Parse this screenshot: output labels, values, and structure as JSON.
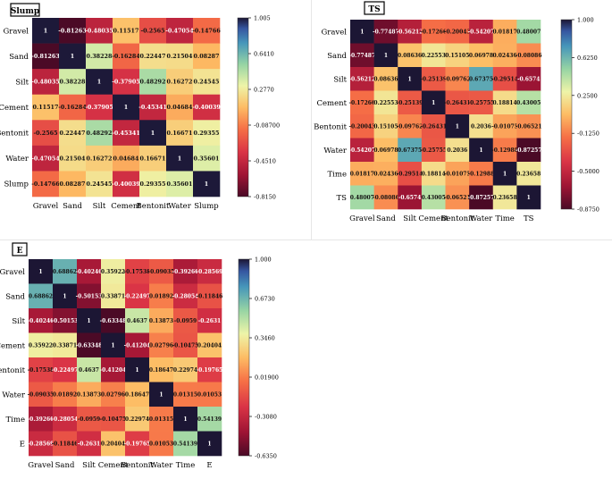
{
  "chart_data": [
    {
      "type": "heatmap",
      "title": "Slump",
      "labels": [
        "Gravel",
        "Sand",
        "Silt",
        "Cement",
        "Bentonit",
        "Water",
        "Slump"
      ],
      "matrix": [
        [
          "1",
          "-0.81263",
          "-0.48035",
          "0.11517",
          "-0.2565",
          "-0.47054",
          "-0.14766"
        ],
        [
          "-0.81263",
          "1",
          "0.38228",
          "-0.16284",
          "0.22447",
          "0.21504",
          "0.08287"
        ],
        [
          "-0.48035",
          "0.38228",
          "1",
          "-0.37905",
          "0.48292",
          "0.16272",
          "0.24545"
        ],
        [
          "0.11517",
          "-0.16284",
          "-0.37905",
          "1",
          "-0.45341",
          "0.04684",
          "-0.40039"
        ],
        [
          "-0.2565",
          "0.22447",
          "0.48292",
          "-0.45341",
          "1",
          "0.16671",
          "0.29355"
        ],
        [
          "-0.47054",
          "0.21504",
          "0.16272",
          "0.04684",
          "0.16671",
          "1",
          "0.35601"
        ],
        [
          "-0.14766",
          "0.08287",
          "0.24545",
          "-0.40039",
          "0.29355",
          "0.35601",
          "1"
        ]
      ],
      "vmin": -0.815,
      "vmax": 1.005,
      "colorbar_ticks": [
        "1.005",
        "0.6410",
        "0.2770",
        "-0.08700",
        "-0.4510",
        "-0.8150"
      ]
    },
    {
      "type": "heatmap",
      "title": "TS",
      "labels": [
        "Gravel",
        "Sand",
        "Silt",
        "Cement",
        "Bentonit",
        "Water",
        "Time",
        "TS"
      ],
      "matrix": [
        [
          "1",
          "-0.77487",
          "-0.56212",
          "-0.17266",
          "-0.20043",
          "-0.54207",
          "0.01817",
          "0.48007"
        ],
        [
          "-0.77487",
          "1",
          "0.08636",
          "0.22553",
          "0.15105",
          "0.06978",
          "0.02436",
          "-0.08086"
        ],
        [
          "-0.56212",
          "0.08636",
          "1",
          "-0.25139",
          "-0.09762",
          "0.67375",
          "-0.29514",
          "-0.6574"
        ],
        [
          "-0.17266",
          "0.22553",
          "-0.25139",
          "1",
          "-0.26431",
          "-0.25755",
          "0.18814",
          "0.43005"
        ],
        [
          "-0.20043",
          "0.15105",
          "-0.09762",
          "-0.26431",
          "1",
          "0.2036",
          "-0.01075",
          "-0.06521"
        ],
        [
          "-0.54207",
          "0.06978",
          "0.67375",
          "-0.25755",
          "0.2036",
          "1",
          "-0.12988",
          "-0.87257"
        ],
        [
          "0.01817",
          "0.02436",
          "-0.29514",
          "0.18814",
          "-0.01075",
          "-0.12988",
          "1",
          "0.23658"
        ],
        [
          "0.48007",
          "-0.08086",
          "-0.6574",
          "0.43005",
          "-0.06521",
          "-0.87257",
          "0.23658",
          "1"
        ]
      ],
      "vmin": -0.875,
      "vmax": 1.0,
      "colorbar_ticks": [
        "1.000",
        "0.6250",
        "0.2500",
        "-0.1250",
        "-0.5000",
        "-0.8750"
      ]
    },
    {
      "type": "heatmap",
      "title": "E",
      "labels": [
        "Gravel",
        "Sand",
        "Silt",
        "Cement",
        "Bentonit",
        "Water",
        "Time",
        "E"
      ],
      "matrix": [
        [
          "1",
          "0.68862",
          "-0.40246",
          "0.35922",
          "-0.17538",
          "-0.09035",
          "-0.39266",
          "-0.28569"
        ],
        [
          "0.68862",
          "1",
          "-0.50153",
          "0.33871",
          "-0.22497",
          "0.01892",
          "-0.28054",
          "-0.11846"
        ],
        [
          "-0.40246",
          "-0.50153",
          "1",
          "-0.63348",
          "0.4637",
          "0.13873",
          "-0.0959",
          "-0.2631"
        ],
        [
          "0.35922",
          "0.33871",
          "-0.63348",
          "1",
          "-0.41204",
          "0.02796",
          "-0.10475",
          "0.20404"
        ],
        [
          "-0.17538",
          "-0.22497",
          "0.4637",
          "-0.41204",
          "1",
          "0.18647",
          "0.22974",
          "-0.19765"
        ],
        [
          "-0.09035",
          "0.01892",
          "0.13873",
          "0.02796",
          "0.18647",
          "1",
          "0.01315",
          "0.01053"
        ],
        [
          "-0.39266",
          "-0.28054",
          "-0.0959",
          "-0.10475",
          "0.22974",
          "0.01315",
          "1",
          "0.54139"
        ],
        [
          "-0.28569",
          "-0.11846",
          "-0.2631",
          "0.20404",
          "-0.19765",
          "0.01053",
          "0.54139",
          "1"
        ]
      ],
      "vmin": -0.635,
      "vmax": 1.0,
      "colorbar_ticks": [
        "1.000",
        "0.6730",
        "0.3460",
        "0.01900",
        "-0.3080",
        "-0.6350"
      ]
    }
  ]
}
